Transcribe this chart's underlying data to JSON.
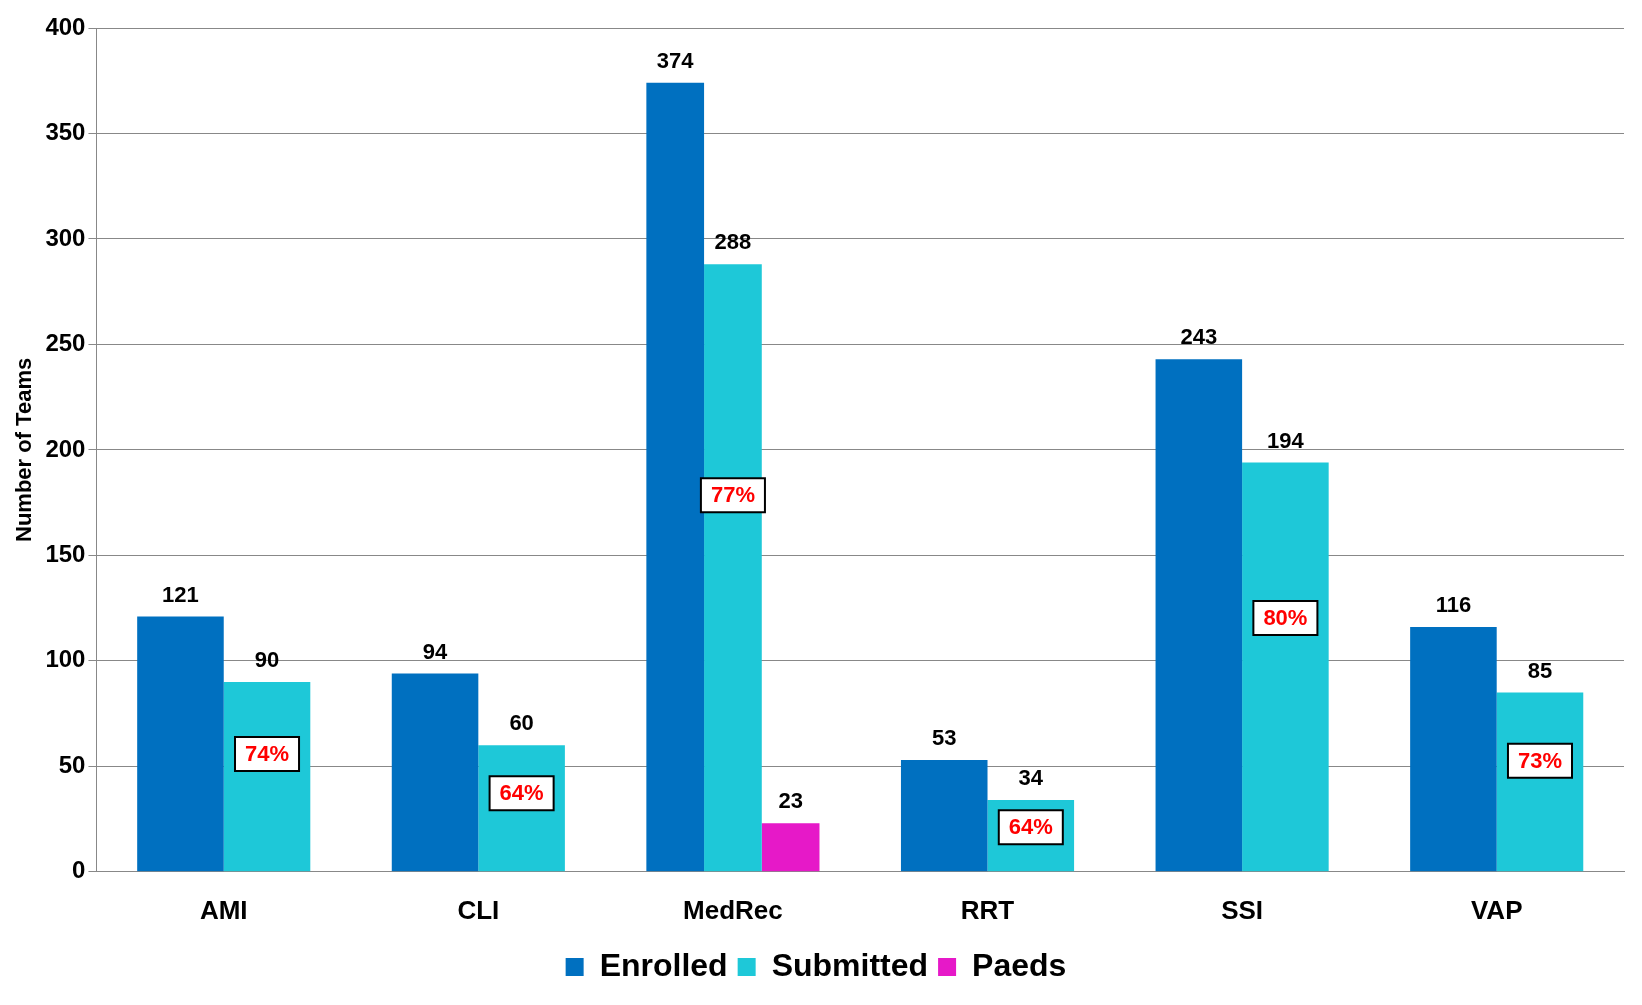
{
  "chart_data": {
    "type": "bar",
    "ylabel": "Number of Teams",
    "categories": [
      "AMI",
      "CLI",
      "MedRec",
      "RRT",
      "SSI",
      "VAP"
    ],
    "series": [
      {
        "name": "Enrolled",
        "color": "#0070c0",
        "values": [
          121,
          94,
          374,
          53,
          243,
          116
        ]
      },
      {
        "name": "Submitted",
        "color": "#1ec8d8",
        "values": [
          90,
          60,
          288,
          34,
          194,
          85
        ]
      },
      {
        "name": "Paeds",
        "color": "#e619c8",
        "values": [
          null,
          null,
          23,
          null,
          null,
          null
        ]
      }
    ],
    "ylim": [
      0,
      400
    ],
    "yticks": [
      0,
      50,
      100,
      150,
      200,
      250,
      300,
      350,
      400
    ],
    "grid": "y",
    "legend": "bottom",
    "data_labels": true,
    "annotations": [
      "74%",
      "64%",
      "77%",
      "64%",
      "80%",
      "73%"
    ]
  }
}
